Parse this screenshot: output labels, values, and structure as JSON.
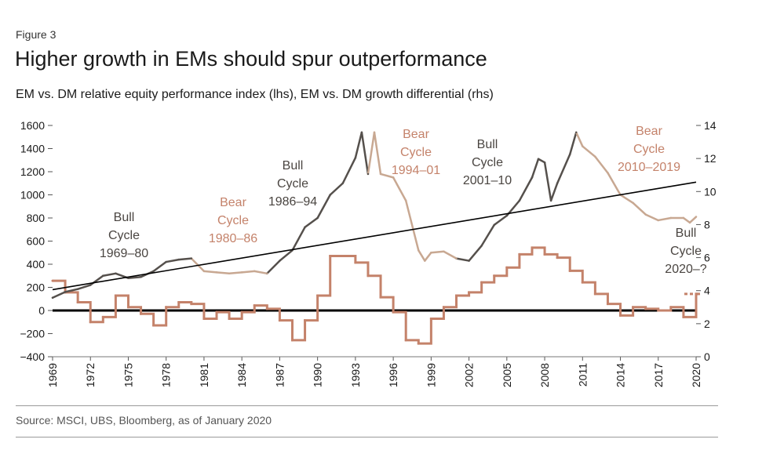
{
  "figure_label": "Figure 3",
  "title": "Higher growth in EMs should spur outperformance",
  "subtitle": "EM vs. DM relative equity performance index (lhs), EM vs. DM growth differential (rhs)",
  "source": "Source: MSCI, UBS, Bloomberg, as of January 2020",
  "colors": {
    "bull": "#55504c",
    "bear": "#c8a892",
    "growth": "#c4826a",
    "trend": "#000000",
    "zero": "#000000"
  },
  "chart_data": {
    "type": "line",
    "title": "Higher growth in EMs should spur outperformance",
    "x_ticks": [
      "1969",
      "1972",
      "1975",
      "1978",
      "1981",
      "1984",
      "1987",
      "1990",
      "1993",
      "1996",
      "1999",
      "2002",
      "2005",
      "2008",
      "2011",
      "2014",
      "2017",
      "2020"
    ],
    "xlim": [
      1969,
      2020
    ],
    "ylim_left": [
      -400,
      1600
    ],
    "y_left_ticks": [
      "1600",
      "1400",
      "1200",
      "1000",
      "800",
      "600",
      "400",
      "200",
      "0",
      "−200",
      "−400"
    ],
    "ylim_right": [
      0,
      14
    ],
    "y_right_ticks": [
      "14",
      "12",
      "10",
      "8",
      "6",
      "4",
      "2",
      "0"
    ],
    "series": [
      {
        "name": "EM vs. DM relative equity performance index (lhs)",
        "axis": "left",
        "x": [
          1969,
          1970,
          1971,
          1972,
          1973,
          1974,
          1975,
          1976,
          1977,
          1978,
          1979,
          1980,
          1981,
          1982,
          1983,
          1984,
          1985,
          1986,
          1987,
          1988,
          1989,
          1990,
          1991,
          1992,
          1993,
          1993.5,
          1994,
          1994.5,
          1995,
          1996,
          1997,
          1998,
          1998.5,
          1999,
          2000,
          2001,
          2002,
          2003,
          2004,
          2005,
          2006,
          2007,
          2007.5,
          2008,
          2008.5,
          2009,
          2010,
          2010.5,
          2011,
          2012,
          2013,
          2014,
          2015,
          2016,
          2017,
          2018,
          2019,
          2019.5,
          2020
        ],
        "values": [
          110,
          160,
          185,
          220,
          300,
          320,
          280,
          290,
          340,
          420,
          440,
          450,
          340,
          330,
          320,
          330,
          340,
          320,
          430,
          520,
          720,
          800,
          1000,
          1100,
          1320,
          1540,
          1180,
          1540,
          1180,
          1150,
          950,
          520,
          430,
          500,
          510,
          450,
          430,
          560,
          740,
          820,
          950,
          1150,
          1310,
          1280,
          950,
          1100,
          1350,
          1540,
          1420,
          1330,
          1190,
          1000,
          930,
          830,
          780,
          800,
          800,
          760,
          810
        ]
      },
      {
        "name": "Trend",
        "axis": "left",
        "x": [
          1969,
          2020
        ],
        "values": [
          180,
          1110
        ]
      },
      {
        "name": "EM vs. DM growth differential (rhs)",
        "axis": "right",
        "x": [
          1969,
          1970,
          1971,
          1972,
          1973,
          1974,
          1975,
          1976,
          1977,
          1978,
          1979,
          1980,
          1981,
          1982,
          1983,
          1984,
          1985,
          1986,
          1987,
          1988,
          1989,
          1990,
          1991,
          1992,
          1993,
          1994,
          1995,
          1996,
          1997,
          1998,
          1999,
          2000,
          2001,
          2002,
          2003,
          2004,
          2005,
          2006,
          2007,
          2008,
          2009,
          2010,
          2011,
          2012,
          2013,
          2014,
          2015,
          2016,
          2017,
          2018,
          2019,
          2020
        ],
        "values": [
          4.6,
          3.9,
          3.3,
          2.1,
          2.4,
          3.7,
          3.0,
          2.6,
          1.9,
          3.0,
          3.3,
          3.2,
          2.3,
          2.7,
          2.3,
          2.7,
          3.1,
          2.9,
          2.2,
          1.0,
          2.2,
          3.7,
          6.1,
          6.1,
          5.7,
          4.9,
          3.6,
          2.7,
          1.0,
          0.8,
          2.3,
          3.0,
          3.7,
          3.9,
          4.5,
          4.9,
          5.4,
          6.2,
          6.6,
          6.2,
          6.0,
          5.2,
          4.5,
          3.8,
          3.2,
          2.5,
          3.0,
          2.9,
          2.8,
          3.0,
          2.4,
          3.8
        ]
      }
    ],
    "annotations": [
      {
        "cycle": "bull",
        "lines": [
          "Bull",
          "Cycle",
          "1969–80"
        ]
      },
      {
        "cycle": "bear",
        "lines": [
          "Bear",
          "Cycle",
          "1980–86"
        ]
      },
      {
        "cycle": "bull",
        "lines": [
          "Bull",
          "Cycle",
          "1986–94"
        ]
      },
      {
        "cycle": "bear",
        "lines": [
          "Bear",
          "Cycle",
          "1994–01"
        ]
      },
      {
        "cycle": "bull",
        "lines": [
          "Bull",
          "Cycle",
          "2001–10"
        ]
      },
      {
        "cycle": "bear",
        "lines": [
          "Bear",
          "Cycle",
          "2010–2019"
        ]
      },
      {
        "cycle": "bull",
        "lines": [
          "Bull",
          "Cycle",
          "2020–?"
        ]
      }
    ]
  }
}
